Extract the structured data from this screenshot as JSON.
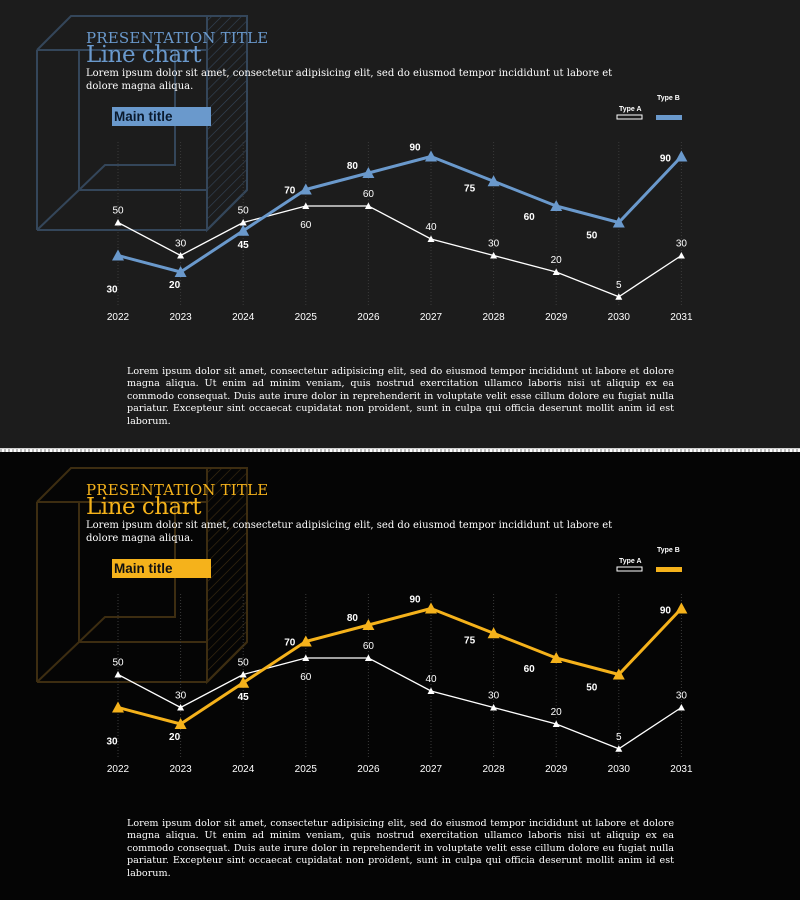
{
  "slides": [
    {
      "presentation_title": "PRESENTATION TITLE",
      "chart_heading": "Line chart",
      "intro_text": "Lorem ipsum dolor sit amet, consectetur adipisicing elit, sed do eiusmod tempor incididunt ut labore et dolore magna aliqua.",
      "main_title": "Main title",
      "body_text": "Lorem ipsum dolor sit amet, consectetur adipisicing elit, sed do eiusmod tempor incididunt ut labore et dolore magna aliqua. Ut enim ad minim veniam, quis nostrud exercitation ullamco laboris nisi ut aliquip ex ea commodo consequat. Duis aute irure dolor in reprehenderit in voluptate velit esse cillum dolore eu fugiat nulla pariatur. Excepteur sint occaecat cupidatat non proident, sunt in culpa qui officia deserunt mollit anim id est laborum.",
      "colors": {
        "accent": "#6a99cc",
        "background": "#1c1c1c",
        "deco": "#34465a",
        "series_a": "#ffffff"
      }
    },
    {
      "presentation_title": "PRESENTATION TITLE",
      "chart_heading": "Line chart",
      "intro_text": "Lorem ipsum dolor sit amet, consectetur adipisicing elit, sed do eiusmod tempor incididunt ut labore et dolore magna aliqua.",
      "main_title": "Main title",
      "body_text": "Lorem ipsum dolor sit amet, consectetur adipisicing elit, sed do eiusmod tempor incididunt ut labore et dolore magna aliqua. Ut enim ad minim veniam, quis nostrud exercitation ullamco laboris nisi ut aliquip ex ea commodo consequat. Duis aute irure dolor in reprehenderit in voluptate velit esse cillum dolore eu fugiat nulla pariatur. Excepteur sint occaecat cupidatat non proident, sunt in culpa qui officia deserunt mollit anim id est laborum.",
      "colors": {
        "accent": "#f5b21b",
        "background": "#050505",
        "deco": "#3d2d11",
        "series_a": "#ffffff"
      }
    }
  ],
  "chart_data": [
    {
      "type": "line",
      "title": "Main title",
      "categories": [
        "2022",
        "2023",
        "2024",
        "2025",
        "2026",
        "2027",
        "2028",
        "2029",
        "2030",
        "2031"
      ],
      "series": [
        {
          "name": "Type A",
          "values": [
            50,
            30,
            50,
            60,
            60,
            40,
            30,
            20,
            5,
            30
          ]
        },
        {
          "name": "Type B",
          "values": [
            30,
            20,
            45,
            70,
            80,
            90,
            75,
            60,
            50,
            90
          ]
        }
      ],
      "ylim": [
        0,
        100
      ],
      "legend": "top-right"
    },
    {
      "type": "line",
      "title": "Main title",
      "categories": [
        "2022",
        "2023",
        "2024",
        "2025",
        "2026",
        "2027",
        "2028",
        "2029",
        "2030",
        "2031"
      ],
      "series": [
        {
          "name": "Type A",
          "values": [
            50,
            30,
            50,
            60,
            60,
            40,
            30,
            20,
            5,
            30
          ]
        },
        {
          "name": "Type B",
          "values": [
            30,
            20,
            45,
            70,
            80,
            90,
            75,
            60,
            50,
            90
          ]
        }
      ],
      "ylim": [
        0,
        100
      ],
      "legend": "top-right"
    }
  ]
}
